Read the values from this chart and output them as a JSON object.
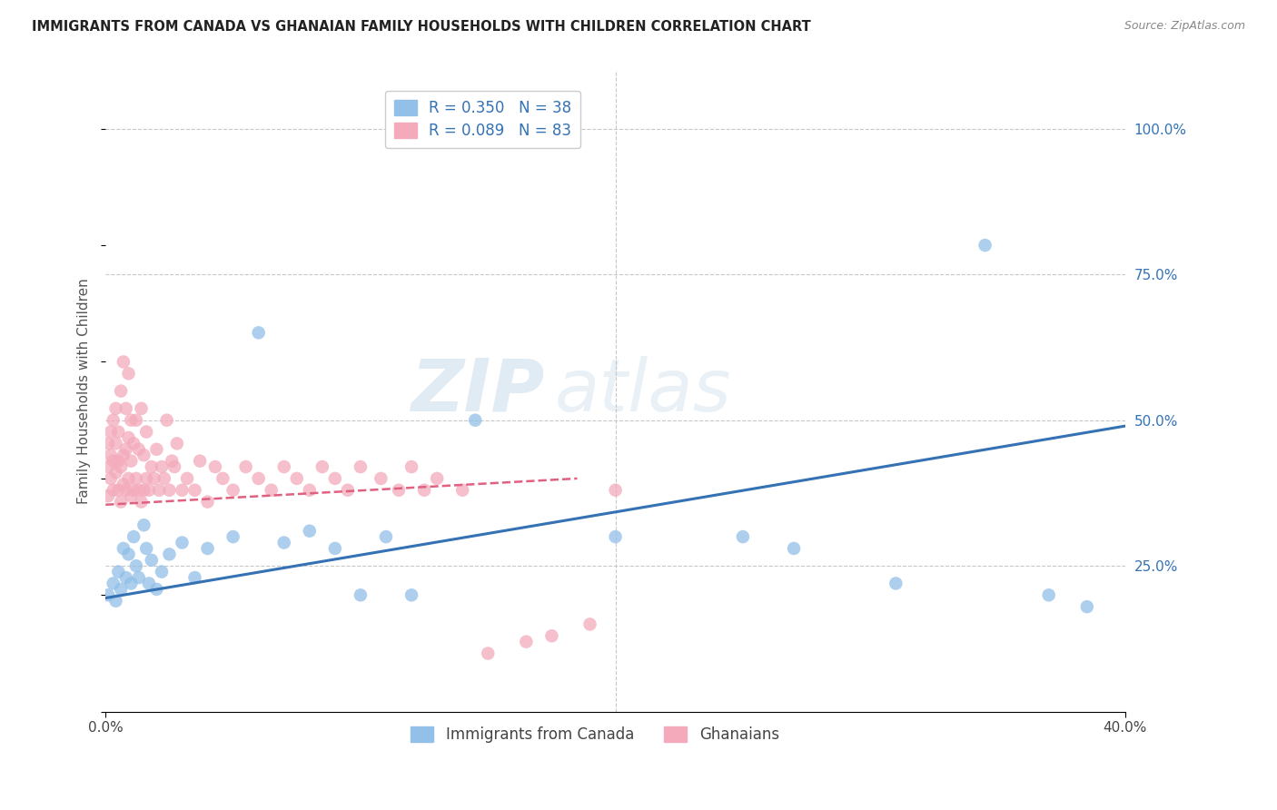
{
  "title": "IMMIGRANTS FROM CANADA VS GHANAIAN FAMILY HOUSEHOLDS WITH CHILDREN CORRELATION CHART",
  "source": "Source: ZipAtlas.com",
  "ylabel": "Family Households with Children",
  "xlim": [
    0.0,
    0.4
  ],
  "ylim": [
    0.0,
    1.1
  ],
  "legend1": [
    {
      "label": "R = 0.350   N = 38",
      "color": "#92C0E8"
    },
    {
      "label": "R = 0.089   N = 83",
      "color": "#F4AABB"
    }
  ],
  "legend2_labels": [
    "Immigrants from Canada",
    "Ghanaians"
  ],
  "legend2_colors": [
    "#92C0E8",
    "#F4AABB"
  ],
  "watermark": "ZIPatlas",
  "canada_color": "#92C0E8",
  "ghana_color": "#F4AABB",
  "canada_line_color": "#3472B4",
  "ghana_line_color": "#E06080",
  "background_color": "#FFFFFF",
  "grid_color": "#C8C8C8",
  "canada_x": [
    0.001,
    0.003,
    0.004,
    0.005,
    0.006,
    0.007,
    0.008,
    0.009,
    0.01,
    0.011,
    0.012,
    0.013,
    0.015,
    0.016,
    0.017,
    0.018,
    0.02,
    0.022,
    0.025,
    0.03,
    0.035,
    0.04,
    0.05,
    0.06,
    0.07,
    0.08,
    0.09,
    0.1,
    0.11,
    0.12,
    0.145,
    0.2,
    0.25,
    0.27,
    0.31,
    0.345,
    0.37,
    0.385
  ],
  "canada_y": [
    0.2,
    0.22,
    0.19,
    0.24,
    0.21,
    0.28,
    0.23,
    0.27,
    0.22,
    0.3,
    0.25,
    0.23,
    0.32,
    0.28,
    0.22,
    0.26,
    0.21,
    0.24,
    0.27,
    0.29,
    0.23,
    0.28,
    0.3,
    0.65,
    0.29,
    0.31,
    0.28,
    0.2,
    0.3,
    0.2,
    0.5,
    0.3,
    0.3,
    0.28,
    0.22,
    0.8,
    0.2,
    0.18
  ],
  "ghana_x": [
    0.001,
    0.001,
    0.001,
    0.002,
    0.002,
    0.002,
    0.003,
    0.003,
    0.003,
    0.004,
    0.004,
    0.004,
    0.005,
    0.005,
    0.005,
    0.006,
    0.006,
    0.006,
    0.007,
    0.007,
    0.007,
    0.008,
    0.008,
    0.008,
    0.009,
    0.009,
    0.009,
    0.01,
    0.01,
    0.01,
    0.011,
    0.011,
    0.012,
    0.012,
    0.013,
    0.013,
    0.014,
    0.014,
    0.015,
    0.015,
    0.016,
    0.016,
    0.017,
    0.018,
    0.019,
    0.02,
    0.021,
    0.022,
    0.023,
    0.024,
    0.025,
    0.026,
    0.027,
    0.028,
    0.03,
    0.032,
    0.035,
    0.037,
    0.04,
    0.043,
    0.046,
    0.05,
    0.055,
    0.06,
    0.065,
    0.07,
    0.075,
    0.08,
    0.085,
    0.09,
    0.095,
    0.1,
    0.108,
    0.115,
    0.12,
    0.125,
    0.13,
    0.14,
    0.15,
    0.165,
    0.175,
    0.19,
    0.2
  ],
  "ghana_y": [
    0.37,
    0.42,
    0.46,
    0.4,
    0.44,
    0.48,
    0.38,
    0.43,
    0.5,
    0.41,
    0.46,
    0.52,
    0.38,
    0.43,
    0.48,
    0.36,
    0.42,
    0.55,
    0.39,
    0.44,
    0.6,
    0.38,
    0.45,
    0.52,
    0.4,
    0.47,
    0.58,
    0.37,
    0.43,
    0.5,
    0.38,
    0.46,
    0.4,
    0.5,
    0.38,
    0.45,
    0.36,
    0.52,
    0.38,
    0.44,
    0.4,
    0.48,
    0.38,
    0.42,
    0.4,
    0.45,
    0.38,
    0.42,
    0.4,
    0.5,
    0.38,
    0.43,
    0.42,
    0.46,
    0.38,
    0.4,
    0.38,
    0.43,
    0.36,
    0.42,
    0.4,
    0.38,
    0.42,
    0.4,
    0.38,
    0.42,
    0.4,
    0.38,
    0.42,
    0.4,
    0.38,
    0.42,
    0.4,
    0.38,
    0.42,
    0.38,
    0.4,
    0.38,
    0.1,
    0.12,
    0.13,
    0.15,
    0.38
  ]
}
